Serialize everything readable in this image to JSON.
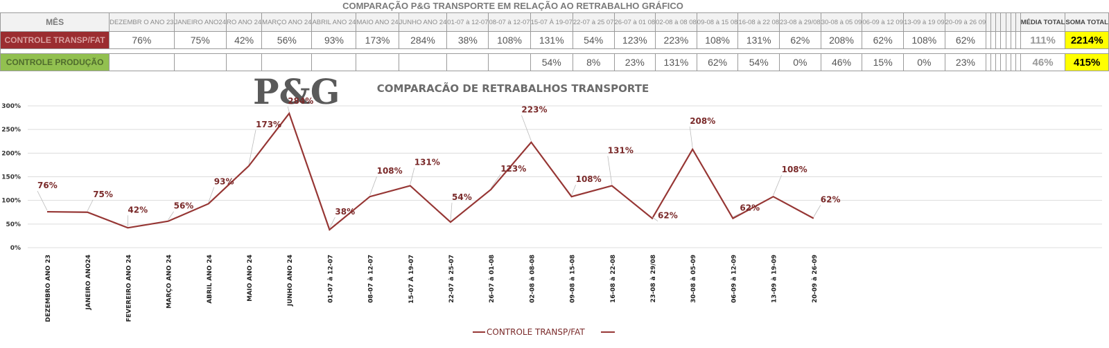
{
  "page_title": "COMPARAÇÃO P&G  TRANSPORTE EM RELAÇÃO AO RETRABALHO GRÁFICO",
  "table": {
    "header_label": "MÊS",
    "columns": [
      "DEZEMBR O ANO 23",
      "JANEIRO ANO24",
      "RO ANO 24",
      "MARÇO ANO 24",
      "ABRIL ANO 24",
      "MAIO ANO 24",
      "JUNHO ANO 24",
      "01-07 à 12-07",
      "08-07 à 12-07",
      "15-07 À 19-07",
      "22-07 à 25 07",
      "26-07 à 01 08",
      "02-08 à 08 08",
      "09-08 à 15 08",
      "16-08 à 22 08",
      "23-08 à 29/08",
      "30-08 à 05 09",
      "06-09 à 12 09",
      "13-09 à 19 09",
      "20-09 à 26 09",
      "",
      "",
      "",
      "",
      "",
      "",
      ""
    ],
    "avg_header": "MÉDIA TOTAL",
    "sum_header": "SOMA TOTAL",
    "rows": [
      {
        "label": "CONTROLE TRANSP/FAT",
        "values": [
          "76%",
          "75%",
          "42%",
          "56%",
          "93%",
          "173%",
          "284%",
          "38%",
          "108%",
          "131%",
          "54%",
          "123%",
          "223%",
          "108%",
          "131%",
          "62%",
          "208%",
          "62%",
          "108%",
          "62%",
          "",
          "",
          "",
          "",
          "",
          "",
          ""
        ],
        "avg": "111%",
        "sum": "2214%"
      },
      {
        "label": "CONTROLE PRODUÇÃO",
        "values": [
          "",
          "",
          "",
          "",
          "",
          "",
          "",
          "",
          "",
          "54%",
          "8%",
          "23%",
          "131%",
          "62%",
          "54%",
          "0%",
          "46%",
          "15%",
          "0%",
          "23%",
          "",
          "",
          "",
          "",
          "",
          "",
          ""
        ],
        "avg": "46%",
        "sum": "415%"
      }
    ]
  },
  "logo_text": "P&G",
  "colors": {
    "series": "#963634",
    "label_red": "#9b2d30",
    "label_green": "#92c050",
    "sum_bg": "#ffff00",
    "label_text": "#7a2a2a"
  },
  "chart_data": {
    "type": "line",
    "title": "COMPARACÃO DE RETRABALHOS TRANSPORTE",
    "categories": [
      "DEZEMBRO ANO 23",
      "JANEIRO ANO24",
      "FEVEREIRO ANO 24",
      "MARÇO ANO 24",
      "ABRIL     ANO 24",
      "MAIO      ANO 24",
      "JUNHO    ANO 24",
      "01-07 à 12-07",
      "08-07 à 12-07",
      "15-07 À 19-07",
      "22-07 à 25-07",
      "26-07 à 01-08",
      "02-08 à 08-08",
      "09-08 à 15-08",
      "16-08 à 22-08",
      "23-08 à 29/08",
      "30-08 à 05-09",
      "06-09 à 12-09",
      "13-09 à 19-09",
      "20-09 à 26-09"
    ],
    "series": [
      {
        "name": "CONTROLE TRANSP/FAT",
        "values": [
          76,
          75,
          42,
          56,
          93,
          173,
          284,
          38,
          108,
          131,
          54,
          123,
          223,
          108,
          131,
          62,
          208,
          62,
          108,
          62
        ],
        "labels": [
          "76%",
          "75%",
          "42%",
          "56%",
          "93%",
          "173%",
          "284%",
          "38%",
          "108%",
          "131%",
          "54%",
          "123%",
          "223%",
          "108%",
          "131%",
          "62%",
          "208%",
          "62%",
          "108%",
          "62%"
        ]
      }
    ],
    "yticks": [
      "0%",
      "50%",
      "100%",
      "150%",
      "200%",
      "250%",
      "300%"
    ],
    "ylim": [
      0,
      300
    ],
    "grid": true,
    "legend_position": "bottom"
  }
}
